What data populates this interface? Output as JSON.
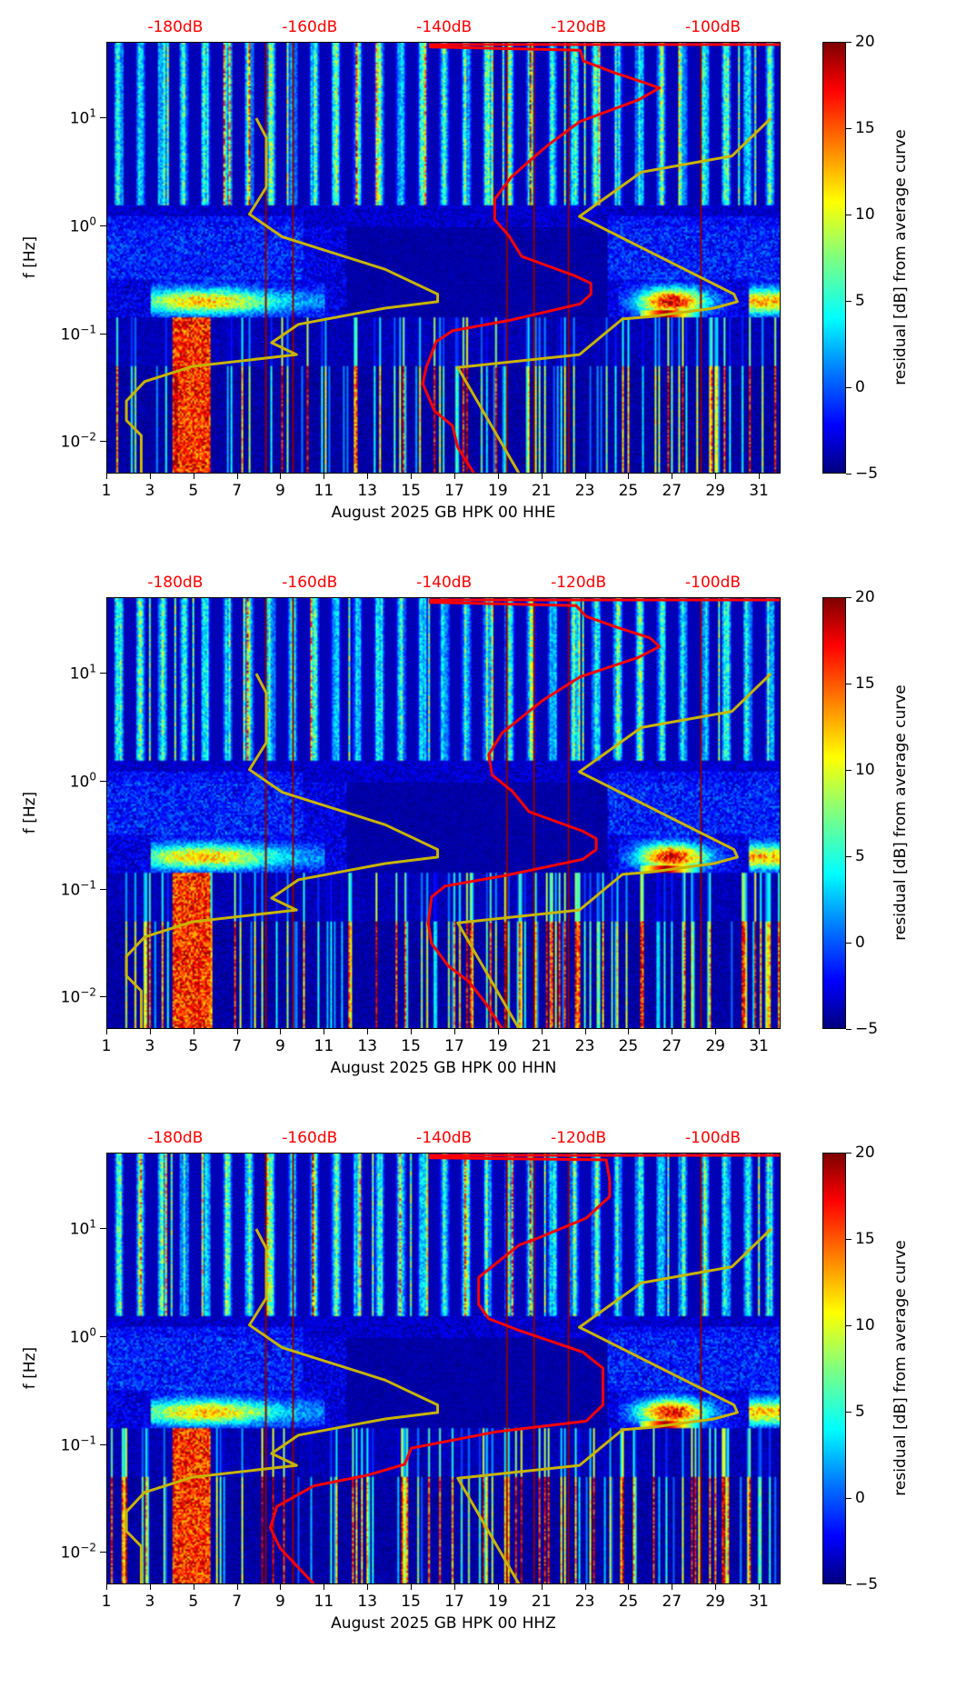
{
  "chart_data": [
    {
      "type": "heatmap",
      "title": "",
      "xlabel": "August 2025 GB HPK 00 HHE",
      "ylabel": "f [Hz]",
      "yscale": "log",
      "xlim": [
        1,
        32
      ],
      "ylim": [
        0.005,
        50
      ],
      "x_ticks": [
        "1",
        "3",
        "5",
        "7",
        "9",
        "11",
        "13",
        "15",
        "17",
        "19",
        "21",
        "23",
        "25",
        "27",
        "29",
        "31"
      ],
      "y_ticks": [
        {
          "base": "10",
          "exp": "1"
        },
        {
          "base": "10",
          "exp": "0"
        },
        {
          "base": "10",
          "exp": "−1"
        },
        {
          "base": "10",
          "exp": "−2"
        }
      ],
      "top_axis_ticks": [
        "-180dB",
        "-160dB",
        "-140dB",
        "-120dB",
        "-100dB"
      ],
      "colorbar": {
        "label": "residual [dB] from average curve",
        "range": [
          -5,
          20
        ],
        "ticks": [
          "20",
          "15",
          "10",
          "5",
          "0",
          "−5"
        ],
        "colormap": "jet"
      },
      "overlay_colors": {
        "model": "#c8b400",
        "station": "#ff0000"
      },
      "red_curve_dB_log10f": [
        [
          -142.4,
          1.66
        ],
        [
          -119.9,
          1.63
        ],
        [
          -119.4,
          1.53
        ],
        [
          -115.2,
          1.43
        ],
        [
          -110.4,
          1.33
        ],
        [
          -108.1,
          1.28
        ],
        [
          -111.2,
          1.17
        ],
        [
          -119.9,
          0.97
        ],
        [
          -124.7,
          0.75
        ],
        [
          -127.5,
          0.6
        ],
        [
          -130.2,
          0.45
        ],
        [
          -132.6,
          0.25
        ],
        [
          -132.6,
          0.06
        ],
        [
          -130.5,
          -0.09
        ],
        [
          -128.6,
          -0.28
        ],
        [
          -120.7,
          -0.46
        ],
        [
          -118.3,
          -0.53
        ],
        [
          -118.3,
          -0.63
        ],
        [
          -119.9,
          -0.72
        ],
        [
          -130.2,
          -0.87
        ],
        [
          -138.9,
          -0.97
        ],
        [
          -141.3,
          -1.07
        ],
        [
          -142.8,
          -1.31
        ],
        [
          -143.3,
          -1.46
        ],
        [
          -141.6,
          -1.71
        ],
        [
          -138.9,
          -1.85
        ],
        [
          -138.1,
          -2.05
        ],
        [
          -135.7,
          -2.29
        ]
      ]
    },
    {
      "type": "heatmap",
      "title": "",
      "xlabel": "August 2025 GB HPK 00 HHN",
      "ylabel": "f [Hz]",
      "yscale": "log",
      "xlim": [
        1,
        32
      ],
      "ylim": [
        0.005,
        50
      ],
      "x_ticks": [
        "1",
        "3",
        "5",
        "7",
        "9",
        "11",
        "13",
        "15",
        "17",
        "19",
        "21",
        "23",
        "25",
        "27",
        "29",
        "31"
      ],
      "y_ticks": [
        {
          "base": "10",
          "exp": "1"
        },
        {
          "base": "10",
          "exp": "0"
        },
        {
          "base": "10",
          "exp": "−1"
        },
        {
          "base": "10",
          "exp": "−2"
        }
      ],
      "top_axis_ticks": [
        "-180dB",
        "-160dB",
        "-140dB",
        "-120dB",
        "-100dB"
      ],
      "colorbar": {
        "label": "residual [dB] from average curve",
        "range": [
          -5,
          20
        ],
        "ticks": [
          "20",
          "15",
          "10",
          "5",
          "0",
          "−5"
        ],
        "colormap": "jet"
      },
      "overlay_colors": {
        "model": "#c8b400",
        "station": "#ff0000"
      },
      "red_curve_dB_log10f": [
        [
          -142.4,
          1.66
        ],
        [
          -120.5,
          1.63
        ],
        [
          -119.0,
          1.53
        ],
        [
          -114.5,
          1.43
        ],
        [
          -109.5,
          1.33
        ],
        [
          -108.1,
          1.25
        ],
        [
          -111.2,
          1.15
        ],
        [
          -119.9,
          0.97
        ],
        [
          -125.5,
          0.75
        ],
        [
          -128.5,
          0.6
        ],
        [
          -131.5,
          0.45
        ],
        [
          -133.5,
          0.25
        ],
        [
          -133.0,
          0.06
        ],
        [
          -130.0,
          -0.09
        ],
        [
          -127.5,
          -0.28
        ],
        [
          -119.5,
          -0.46
        ],
        [
          -117.5,
          -0.53
        ],
        [
          -117.5,
          -0.63
        ],
        [
          -119.5,
          -0.72
        ],
        [
          -131.0,
          -0.87
        ],
        [
          -140.0,
          -0.97
        ],
        [
          -142.0,
          -1.07
        ],
        [
          -142.5,
          -1.31
        ],
        [
          -142.0,
          -1.5
        ],
        [
          -139.5,
          -1.71
        ],
        [
          -136.5,
          -1.85
        ],
        [
          -134.0,
          -2.05
        ],
        [
          -131.5,
          -2.29
        ]
      ]
    },
    {
      "type": "heatmap",
      "title": "",
      "xlabel": "August 2025 GB HPK 00 HHZ",
      "ylabel": "f [Hz]",
      "yscale": "log",
      "xlim": [
        1,
        32
      ],
      "ylim": [
        0.005,
        50
      ],
      "x_ticks": [
        "1",
        "3",
        "5",
        "7",
        "9",
        "11",
        "13",
        "15",
        "17",
        "19",
        "21",
        "23",
        "25",
        "27",
        "29",
        "31"
      ],
      "y_ticks": [
        {
          "base": "10",
          "exp": "1"
        },
        {
          "base": "10",
          "exp": "0"
        },
        {
          "base": "10",
          "exp": "−1"
        },
        {
          "base": "10",
          "exp": "−2"
        }
      ],
      "top_axis_ticks": [
        "-180dB",
        "-160dB",
        "-140dB",
        "-120dB",
        "-100dB"
      ],
      "colorbar": {
        "label": "residual [dB] from average curve",
        "range": [
          -5,
          20
        ],
        "ticks": [
          "20",
          "15",
          "10",
          "5",
          "0",
          "−5"
        ],
        "colormap": "jet"
      },
      "overlay_colors": {
        "model": "#c8b400",
        "station": "#ff0000"
      },
      "red_curve_dB_log10f": [
        [
          -142.4,
          1.66
        ],
        [
          -116.0,
          1.64
        ],
        [
          -115.5,
          1.45
        ],
        [
          -115.5,
          1.3
        ],
        [
          -119.0,
          1.1
        ],
        [
          -126.0,
          0.92
        ],
        [
          -129.0,
          0.85
        ],
        [
          -132.0,
          0.7
        ],
        [
          -135.0,
          0.55
        ],
        [
          -135.0,
          0.3
        ],
        [
          -133.5,
          0.17
        ],
        [
          -129.0,
          0.06
        ],
        [
          -119.5,
          -0.14
        ],
        [
          -116.5,
          -0.29
        ],
        [
          -116.5,
          -0.63
        ],
        [
          -119.0,
          -0.78
        ],
        [
          -132.5,
          -0.88
        ],
        [
          -145.0,
          -1.03
        ],
        [
          -146.0,
          -1.18
        ],
        [
          -151.5,
          -1.28
        ],
        [
          -159.5,
          -1.38
        ],
        [
          -165.0,
          -1.57
        ],
        [
          -166.0,
          -1.77
        ],
        [
          -164.5,
          -1.96
        ],
        [
          -159.5,
          -2.29
        ]
      ]
    }
  ],
  "model_curves_dB_log10f": {
    "low": [
      [
        -168.1,
        1.0
      ],
      [
        -166.6,
        0.82
      ],
      [
        -166.6,
        0.36
      ],
      [
        -169.1,
        0.11
      ],
      [
        -164.2,
        -0.1
      ],
      [
        -148.9,
        -0.4
      ],
      [
        -141.1,
        -0.63
      ],
      [
        -141.1,
        -0.7
      ],
      [
        -148.9,
        -0.76
      ],
      [
        -161.8,
        -0.91
      ],
      [
        -165.8,
        -1.08
      ],
      [
        -162.1,
        -1.19
      ],
      [
        -177.6,
        -1.3
      ],
      [
        -184.7,
        -1.44
      ],
      [
        -187.4,
        -1.62
      ],
      [
        -187.4,
        -1.8
      ],
      [
        -185.2,
        -1.94
      ],
      [
        -185.2,
        -2.29
      ]
    ],
    "high": [
      [
        -91.5,
        1.0
      ],
      [
        -97.3,
        0.65
      ],
      [
        -110.8,
        0.5
      ],
      [
        -120.0,
        0.09
      ],
      [
        -97.0,
        -0.63
      ],
      [
        -96.5,
        -0.7
      ],
      [
        -100.0,
        -0.76
      ],
      [
        -109.6,
        -0.84
      ],
      [
        -113.6,
        -0.86
      ],
      [
        -120.0,
        -1.19
      ],
      [
        -138.1,
        -1.31
      ],
      [
        -129.0,
        -2.29
      ]
    ]
  }
}
